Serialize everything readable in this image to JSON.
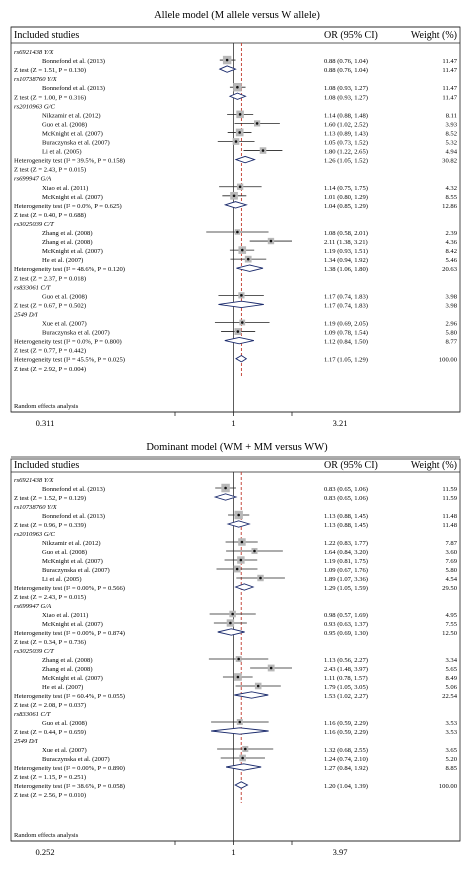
{
  "chart_data": [
    {
      "type": "forest",
      "title": "Allele model (M allele versus W allele)",
      "header": {
        "studies": "Included studies",
        "or": "OR (95% CI)",
        "weight": "Weight (%)"
      },
      "axis": {
        "min": 0.311,
        "max": 3.21,
        "scale": "log",
        "ticks": [
          "0.311",
          "1",
          "3.21"
        ]
      },
      "footer": "Random effects analysis",
      "rows": [
        {
          "kind": "group",
          "label": "rs6921438 Y/X"
        },
        {
          "kind": "study",
          "label": "Bonnefond et al. (2013)",
          "or": 0.88,
          "lo": 0.76,
          "hi": 1.04,
          "weight": 11.47,
          "or_text": "0.88 (0.76, 1.04)",
          "weight_text": "11.47"
        },
        {
          "kind": "ztest",
          "label": "Z test (Z = 1.51, P = 0.130)",
          "or": 0.88,
          "lo": 0.76,
          "hi": 1.04,
          "or_text": "0.88 (0.76, 1.04)",
          "weight_text": "11.47"
        },
        {
          "kind": "group",
          "label": "rs10738760 Y/X"
        },
        {
          "kind": "study",
          "label": "Bonnefond et al. (2013)",
          "or": 1.08,
          "lo": 0.93,
          "hi": 1.27,
          "weight": 11.47,
          "or_text": "1.08 (0.93, 1.27)",
          "weight_text": "11.47"
        },
        {
          "kind": "ztest",
          "label": "Z test (Z = 1.00, P = 0.316)",
          "or": 1.08,
          "lo": 0.93,
          "hi": 1.27,
          "or_text": "1.08 (0.93, 1.27)",
          "weight_text": "11.47"
        },
        {
          "kind": "group",
          "label": "rs2010963 G/C"
        },
        {
          "kind": "study",
          "label": "Nikzamir et al. (2012)",
          "or": 1.14,
          "lo": 0.88,
          "hi": 1.48,
          "weight": 8.11,
          "or_text": "1.14 (0.88, 1.48)",
          "weight_text": "8.11"
        },
        {
          "kind": "study",
          "label": "Guo et al. (2008)",
          "or": 1.6,
          "lo": 1.02,
          "hi": 2.52,
          "weight": 3.93,
          "or_text": "1.60 (1.02, 2.52)",
          "weight_text": "3.93"
        },
        {
          "kind": "study",
          "label": "McKnight et al. (2007)",
          "or": 1.13,
          "lo": 0.89,
          "hi": 1.43,
          "weight": 8.52,
          "or_text": "1.13 (0.89, 1.43)",
          "weight_text": "8.52"
        },
        {
          "kind": "study",
          "label": "Buraczynska et al. (2007)",
          "or": 1.05,
          "lo": 0.73,
          "hi": 1.52,
          "weight": 5.32,
          "or_text": "1.05 (0.73, 1.52)",
          "weight_text": "5.32"
        },
        {
          "kind": "study",
          "label": "Li et al. (2005)",
          "or": 1.8,
          "lo": 1.22,
          "hi": 2.65,
          "weight": 4.94,
          "or_text": "1.80 (1.22, 2.65)",
          "weight_text": "4.94"
        },
        {
          "kind": "het",
          "label": "Heterogeneity test (I² = 39.5%, P = 0.158)",
          "or": 1.26,
          "lo": 1.05,
          "hi": 1.52,
          "or_text": "1.26 (1.05, 1.52)",
          "weight_text": "30.82"
        },
        {
          "kind": "text",
          "label": "Z test (Z = 2.43, P = 0.015)"
        },
        {
          "kind": "group",
          "label": "rs699947 G/A"
        },
        {
          "kind": "study",
          "label": "Xiao et al. (2011)",
          "or": 1.14,
          "lo": 0.75,
          "hi": 1.75,
          "weight": 4.32,
          "or_text": "1.14 (0.75, 1.75)",
          "weight_text": "4.32"
        },
        {
          "kind": "study",
          "label": "McKnight et al. (2007)",
          "or": 1.01,
          "lo": 0.8,
          "hi": 1.29,
          "weight": 8.55,
          "or_text": "1.01 (0.80, 1.29)",
          "weight_text": "8.55"
        },
        {
          "kind": "het",
          "label": "Heterogeneity test (I² = 0.0%, P = 0.625)",
          "or": 1.04,
          "lo": 0.85,
          "hi": 1.29,
          "or_text": "1.04 (0.85, 1.29)",
          "weight_text": "12.86"
        },
        {
          "kind": "text",
          "label": "Z test (Z = 0.40, P = 0.688)"
        },
        {
          "kind": "group",
          "label": "rs3025039 C/T"
        },
        {
          "kind": "study",
          "label": "Zhang et al. (2008)",
          "or": 1.08,
          "lo": 0.58,
          "hi": 2.01,
          "weight": 2.39,
          "or_text": "1.08 (0.58, 2.01)",
          "weight_text": "2.39"
        },
        {
          "kind": "study",
          "label": "Zhang et al. (2008)",
          "or": 2.11,
          "lo": 1.38,
          "hi": 3.21,
          "weight": 4.36,
          "or_text": "2.11 (1.38, 3.21)",
          "weight_text": "4.36"
        },
        {
          "kind": "study",
          "label": "McKnight et al. (2007)",
          "or": 1.19,
          "lo": 0.93,
          "hi": 1.51,
          "weight": 8.42,
          "or_text": "1.19 (0.93, 1.51)",
          "weight_text": "8.42"
        },
        {
          "kind": "study",
          "label": "He et al. (2007)",
          "or": 1.34,
          "lo": 0.94,
          "hi": 1.92,
          "weight": 5.46,
          "or_text": "1.34 (0.94, 1.92)",
          "weight_text": "5.46"
        },
        {
          "kind": "het",
          "label": "Heterogeneity test (I² = 48.6%, P = 0.120)",
          "or": 1.38,
          "lo": 1.06,
          "hi": 1.8,
          "or_text": "1.38 (1.06, 1.80)",
          "weight_text": "20.63"
        },
        {
          "kind": "text",
          "label": "Z test (Z = 2.37, P = 0.018)"
        },
        {
          "kind": "group",
          "label": "rs833061 C/T"
        },
        {
          "kind": "study",
          "label": "Guo et al. (2008)",
          "or": 1.17,
          "lo": 0.74,
          "hi": 1.83,
          "weight": 3.98,
          "or_text": "1.17 (0.74, 1.83)",
          "weight_text": "3.98"
        },
        {
          "kind": "ztest",
          "label": "Z test (Z = 0.67, P = 0.502)",
          "or": 1.17,
          "lo": 0.74,
          "hi": 1.83,
          "or_text": "1.17 (0.74, 1.83)",
          "weight_text": "3.98"
        },
        {
          "kind": "group",
          "label": "2549 D/I"
        },
        {
          "kind": "study",
          "label": "Xue et al. (2007)",
          "or": 1.19,
          "lo": 0.69,
          "hi": 2.05,
          "weight": 2.96,
          "or_text": "1.19 (0.69, 2.05)",
          "weight_text": "2.96"
        },
        {
          "kind": "study",
          "label": "Buraczynska et al. (2007)",
          "or": 1.09,
          "lo": 0.78,
          "hi": 1.54,
          "weight": 5.8,
          "or_text": "1.09 (0.78, 1.54)",
          "weight_text": "5.80"
        },
        {
          "kind": "het",
          "label": "Heterogeneity test (I² = 0.0%, P = 0.800)",
          "or": 1.12,
          "lo": 0.84,
          "hi": 1.5,
          "or_text": "1.12 (0.84, 1.50)",
          "weight_text": "8.77"
        },
        {
          "kind": "text",
          "label": "Z test (Z = 0.77, P = 0.442)"
        },
        {
          "kind": "het",
          "label": "Heterogeneity test (I² = 45.5%, P = 0.025)",
          "or": 1.17,
          "lo": 1.05,
          "hi": 1.29,
          "or_text": "1.17 (1.05, 1.29)",
          "weight_text": "100.00"
        },
        {
          "kind": "text",
          "label": "Z test (Z = 2.92, P = 0.004)"
        }
      ]
    },
    {
      "type": "forest",
      "title": "Dominant model (WM + MM versus WW)",
      "header": {
        "studies": "Included studies",
        "or": "OR (95% CI)",
        "weight": "Weight (%)"
      },
      "axis": {
        "min": 0.252,
        "max": 3.97,
        "scale": "log",
        "ticks": [
          "0.252",
          "1",
          "3.97"
        ]
      },
      "footer": "Random effects analysis",
      "rows": [
        {
          "kind": "group",
          "label": "rs6921438 Y/X"
        },
        {
          "kind": "study",
          "label": "Bonnefond et al. (2013)",
          "or": 0.83,
          "lo": 0.65,
          "hi": 1.06,
          "weight": 11.59,
          "or_text": "0.83 (0.65, 1.06)",
          "weight_text": "11.59"
        },
        {
          "kind": "ztest",
          "label": "Z test (Z = 1.52, P = 0.129)",
          "or": 0.83,
          "lo": 0.65,
          "hi": 1.06,
          "or_text": "0.83 (0.65, 1.06)",
          "weight_text": "11.59"
        },
        {
          "kind": "group",
          "label": "rs10738760 Y/X"
        },
        {
          "kind": "study",
          "label": "Bonnefond et al. (2013)",
          "or": 1.13,
          "lo": 0.88,
          "hi": 1.45,
          "weight": 11.48,
          "or_text": "1.13 (0.88, 1.45)",
          "weight_text": "11.48"
        },
        {
          "kind": "ztest",
          "label": "Z test (Z = 0.96, P = 0.339)",
          "or": 1.13,
          "lo": 0.88,
          "hi": 1.45,
          "or_text": "1.13 (0.88, 1.45)",
          "weight_text": "11.48"
        },
        {
          "kind": "group",
          "label": "rs2010963 G/C"
        },
        {
          "kind": "study",
          "label": "Nikzamir et al. (2012)",
          "or": 1.22,
          "lo": 0.83,
          "hi": 1.77,
          "weight": 7.87,
          "or_text": "1.22 (0.83, 1.77)",
          "weight_text": "7.87"
        },
        {
          "kind": "study",
          "label": "Guo et al. (2008)",
          "or": 1.64,
          "lo": 0.84,
          "hi": 3.2,
          "weight": 3.6,
          "or_text": "1.64 (0.84, 3.20)",
          "weight_text": "3.60"
        },
        {
          "kind": "study",
          "label": "McKnight et al. (2007)",
          "or": 1.19,
          "lo": 0.81,
          "hi": 1.75,
          "weight": 7.69,
          "or_text": "1.19 (0.81, 1.75)",
          "weight_text": "7.69"
        },
        {
          "kind": "study",
          "label": "Buraczynska et al. (2007)",
          "or": 1.09,
          "lo": 0.67,
          "hi": 1.76,
          "weight": 5.8,
          "or_text": "1.09 (0.67, 1.76)",
          "weight_text": "5.80"
        },
        {
          "kind": "study",
          "label": "Li et al. (2005)",
          "or": 1.89,
          "lo": 1.07,
          "hi": 3.36,
          "weight": 4.54,
          "or_text": "1.89 (1.07, 3.36)",
          "weight_text": "4.54"
        },
        {
          "kind": "het",
          "label": "Heterogeneity test (I² = 0.00%, P = 0.566)",
          "or": 1.29,
          "lo": 1.05,
          "hi": 1.59,
          "or_text": "1.29 (1.05, 1.59)",
          "weight_text": "29.50"
        },
        {
          "kind": "text",
          "label": "Z test (Z = 2.43, P = 0.015)"
        },
        {
          "kind": "group",
          "label": "rs699947 G/A"
        },
        {
          "kind": "study",
          "label": "Xiao et al. (2011)",
          "or": 0.98,
          "lo": 0.57,
          "hi": 1.69,
          "weight": 4.95,
          "or_text": "0.98 (0.57, 1.69)",
          "weight_text": "4.95"
        },
        {
          "kind": "study",
          "label": "McKnight et al. (2007)",
          "or": 0.93,
          "lo": 0.63,
          "hi": 1.37,
          "weight": 7.55,
          "or_text": "0.93 (0.63, 1.37)",
          "weight_text": "7.55"
        },
        {
          "kind": "het",
          "label": "Heterogeneity test (I² = 0.00%, P = 0.874)",
          "or": 0.95,
          "lo": 0.69,
          "hi": 1.3,
          "or_text": "0.95 (0.69, 1.30)",
          "weight_text": "12.50"
        },
        {
          "kind": "text",
          "label": "Z test (Z = 0.34, P = 0.736)"
        },
        {
          "kind": "group",
          "label": "rs3025039 C/T"
        },
        {
          "kind": "study",
          "label": "Zhang et al. (2008)",
          "or": 1.13,
          "lo": 0.56,
          "hi": 2.27,
          "weight": 3.34,
          "or_text": "1.13 (0.56, 2.27)",
          "weight_text": "3.34"
        },
        {
          "kind": "study",
          "label": "Zhang et al. (2008)",
          "or": 2.43,
          "lo": 1.48,
          "hi": 3.97,
          "weight": 5.65,
          "or_text": "2.43 (1.48, 3.97)",
          "weight_text": "5.65"
        },
        {
          "kind": "study",
          "label": "McKnight et al. (2007)",
          "or": 1.11,
          "lo": 0.78,
          "hi": 1.57,
          "weight": 8.49,
          "or_text": "1.11 (0.78, 1.57)",
          "weight_text": "8.49"
        },
        {
          "kind": "study",
          "label": "He et al. (2007)",
          "or": 1.79,
          "lo": 1.05,
          "hi": 3.05,
          "weight": 5.06,
          "or_text": "1.79 (1.05, 3.05)",
          "weight_text": "5.06"
        },
        {
          "kind": "het",
          "label": "Heterogeneity test (I² = 60.4%, P = 0.055)",
          "or": 1.53,
          "lo": 1.02,
          "hi": 2.27,
          "or_text": "1.53 (1.02, 2.27)",
          "weight_text": "22.54"
        },
        {
          "kind": "text",
          "label": "Z test (Z = 2.08, P = 0.037)"
        },
        {
          "kind": "group",
          "label": "rs833061 C/T"
        },
        {
          "kind": "study",
          "label": "Guo et al. (2008)",
          "or": 1.16,
          "lo": 0.59,
          "hi": 2.29,
          "weight": 3.53,
          "or_text": "1.16 (0.59, 2.29)",
          "weight_text": "3.53"
        },
        {
          "kind": "ztest",
          "label": "Z test (Z = 0.44, P = 0.659)",
          "or": 1.16,
          "lo": 0.59,
          "hi": 2.29,
          "or_text": "1.16 (0.59, 2.29)",
          "weight_text": "3.53"
        },
        {
          "kind": "group",
          "label": "2549 D/I"
        },
        {
          "kind": "study",
          "label": "Xue et al. (2007)",
          "or": 1.32,
          "lo": 0.68,
          "hi": 2.55,
          "weight": 3.65,
          "or_text": "1.32 (0.68, 2.55)",
          "weight_text": "3.65"
        },
        {
          "kind": "study",
          "label": "Buraczynska et al. (2007)",
          "or": 1.24,
          "lo": 0.74,
          "hi": 2.1,
          "weight": 5.2,
          "or_text": "1.24 (0.74, 2.10)",
          "weight_text": "5.20"
        },
        {
          "kind": "het",
          "label": "Heterogeneity test (I² = 0.00%, P = 0.890)",
          "or": 1.27,
          "lo": 0.84,
          "hi": 1.92,
          "or_text": "1.27 (0.84, 1.92)",
          "weight_text": "8.85"
        },
        {
          "kind": "text",
          "label": "Z test (Z = 1.15, P = 0.251)"
        },
        {
          "kind": "het",
          "label": "Heterogeneity test (I² = 38.6%, P = 0.058)",
          "or": 1.2,
          "lo": 1.04,
          "hi": 1.39,
          "or_text": "1.20 (1.04, 1.39)",
          "weight_text": "100.00"
        },
        {
          "kind": "text",
          "label": "Z test (Z = 2.56, P = 0.010)"
        }
      ]
    }
  ],
  "colors": {
    "pooled_line": "#c0392b",
    "diamond": "#1a2a6c",
    "square": "#b8b8b8",
    "frame": "#222222"
  }
}
